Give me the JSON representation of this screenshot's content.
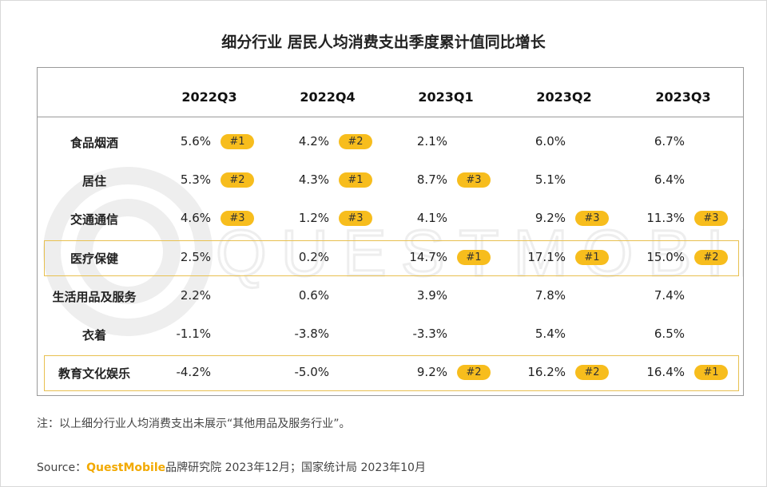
{
  "title": "细分行业 居民人均消费支出季度累计值同比增长",
  "chart_data": {
    "type": "table",
    "columns": [
      "2022Q3",
      "2022Q4",
      "2023Q1",
      "2023Q2",
      "2023Q3"
    ],
    "rows": [
      {
        "label": "食品烟酒",
        "values": [
          "5.6%",
          "4.2%",
          "2.1%",
          "6.0%",
          "6.7%"
        ],
        "ranks": [
          "#1",
          "#2",
          "",
          "",
          ""
        ],
        "highlight": false
      },
      {
        "label": "居住",
        "values": [
          "5.3%",
          "4.3%",
          "8.7%",
          "5.1%",
          "6.4%"
        ],
        "ranks": [
          "#2",
          "#1",
          "#3",
          "",
          ""
        ],
        "highlight": false
      },
      {
        "label": "交通通信",
        "values": [
          "4.6%",
          "1.2%",
          "4.1%",
          "9.2%",
          "11.3%"
        ],
        "ranks": [
          "#3",
          "#3",
          "",
          "#3",
          "#3"
        ],
        "highlight": false
      },
      {
        "label": "医疗保健",
        "values": [
          "2.5%",
          "0.2%",
          "14.7%",
          "17.1%",
          "15.0%"
        ],
        "ranks": [
          "",
          "",
          "#1",
          "#1",
          "#2"
        ],
        "highlight": true
      },
      {
        "label": "生活用品及服务",
        "values": [
          "2.2%",
          "0.6%",
          "3.9%",
          "7.8%",
          "7.4%"
        ],
        "ranks": [
          "",
          "",
          "",
          "",
          ""
        ],
        "highlight": false
      },
      {
        "label": "衣着",
        "values": [
          "-1.1%",
          "-3.8%",
          "-3.3%",
          "5.4%",
          "6.5%"
        ],
        "ranks": [
          "",
          "",
          "",
          "",
          ""
        ],
        "highlight": false
      },
      {
        "label": "教育文化娱乐",
        "values": [
          "-4.2%",
          "-5.0%",
          "9.2%",
          "16.2%",
          "16.4%"
        ],
        "ranks": [
          "",
          "",
          "#2",
          "#2",
          "#1"
        ],
        "highlight": true
      }
    ]
  },
  "watermark_text": "QUESTMOBILE",
  "note": "注：以上细分行业人均消费支出未展示“其他用品及服务行业”。",
  "source": {
    "prefix": "Source：",
    "brand": "QuestMobile",
    "rest": "品牌研究院 2023年12月；国家统计局 2023年10月"
  },
  "colors": {
    "badge": "#f7bd1d",
    "highlight_border": "#e8c050",
    "brand": "#f2a900"
  }
}
